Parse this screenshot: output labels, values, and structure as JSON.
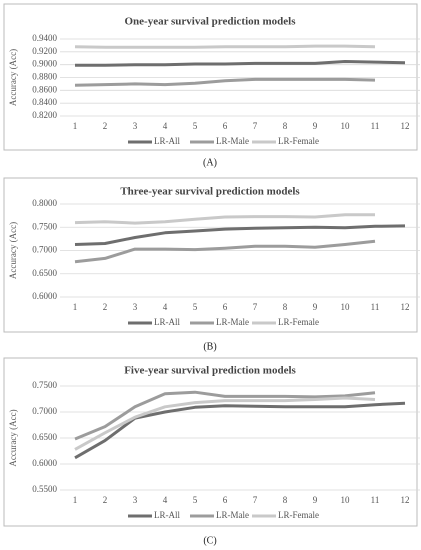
{
  "chart_data": [
    {
      "type": "line",
      "title": "One-year survival prediction models",
      "panel_label": "(A)",
      "y_label": "Accuracy (Acc)",
      "categories": [
        "1",
        "2",
        "3",
        "4",
        "5",
        "6",
        "7",
        "8",
        "9",
        "10",
        "11",
        "12"
      ],
      "series": [
        {
          "name": "LR-All",
          "color": "#6e6e6e",
          "values": [
            0.899,
            0.899,
            0.9,
            0.9,
            0.901,
            0.901,
            0.902,
            0.902,
            0.902,
            0.905,
            0.904,
            0.903
          ]
        },
        {
          "name": "LR-Male",
          "color": "#9c9c9c",
          "values": [
            0.868,
            0.869,
            0.87,
            0.869,
            0.871,
            0.875,
            0.877,
            0.877,
            0.877,
            0.877,
            0.876,
            null
          ]
        },
        {
          "name": "LR-Female",
          "color": "#c9c9c9",
          "values": [
            0.928,
            0.927,
            0.927,
            0.927,
            0.927,
            0.928,
            0.928,
            0.928,
            0.929,
            0.929,
            0.928,
            null
          ]
        }
      ],
      "ylim": [
        0.82,
        0.94
      ],
      "yticks": [
        {
          "value": 0.82,
          "label": "0.8200"
        },
        {
          "value": 0.84,
          "label": "0.8400"
        },
        {
          "value": 0.86,
          "label": "0.8600"
        },
        {
          "value": 0.88,
          "label": "0.8800"
        },
        {
          "value": 0.9,
          "label": "0.9000"
        },
        {
          "value": 0.92,
          "label": "0.9200"
        },
        {
          "value": 0.94,
          "label": "0.9400"
        }
      ],
      "grid": true,
      "legend": "bottom"
    },
    {
      "type": "line",
      "title": "Three-year survival prediction models",
      "panel_label": "(B)",
      "y_label": "Accuracy (Acc)",
      "categories": [
        "1",
        "2",
        "3",
        "4",
        "5",
        "6",
        "7",
        "8",
        "9",
        "10",
        "11",
        "12"
      ],
      "series": [
        {
          "name": "LR-All",
          "color": "#6e6e6e",
          "values": [
            0.713,
            0.715,
            0.728,
            0.738,
            0.742,
            0.746,
            0.748,
            0.749,
            0.75,
            0.749,
            0.752,
            0.753
          ]
        },
        {
          "name": "LR-Male",
          "color": "#9c9c9c",
          "values": [
            0.676,
            0.683,
            0.703,
            0.703,
            0.702,
            0.705,
            0.709,
            0.709,
            0.707,
            0.713,
            0.72,
            null
          ]
        },
        {
          "name": "LR-Female",
          "color": "#c9c9c9",
          "values": [
            0.76,
            0.762,
            0.759,
            0.762,
            0.767,
            0.772,
            0.773,
            0.773,
            0.772,
            0.777,
            0.777,
            null
          ]
        }
      ],
      "ylim": [
        0.6,
        0.8
      ],
      "yticks": [
        {
          "value": 0.6,
          "label": "0.6000"
        },
        {
          "value": 0.65,
          "label": "0.6500"
        },
        {
          "value": 0.7,
          "label": "0.7000"
        },
        {
          "value": 0.75,
          "label": "0.7500"
        },
        {
          "value": 0.8,
          "label": "0.8000"
        }
      ],
      "grid": true,
      "legend": "bottom"
    },
    {
      "type": "line",
      "title": "Five-year survival prediction models",
      "panel_label": "(C)",
      "y_label": "Accuracy (Acc)",
      "categories": [
        "1",
        "2",
        "3",
        "4",
        "5",
        "6",
        "7",
        "8",
        "9",
        "10",
        "11",
        "12"
      ],
      "series": [
        {
          "name": "LR-All",
          "color": "#6e6e6e",
          "values": [
            0.612,
            0.645,
            0.688,
            0.7,
            0.709,
            0.712,
            0.711,
            0.71,
            0.71,
            0.71,
            0.714,
            0.717
          ]
        },
        {
          "name": "LR-Male",
          "color": "#9c9c9c",
          "values": [
            0.648,
            0.672,
            0.71,
            0.735,
            0.738,
            0.73,
            0.73,
            0.73,
            0.729,
            0.731,
            0.737,
            null
          ]
        },
        {
          "name": "LR-Female",
          "color": "#c9c9c9",
          "values": [
            0.628,
            0.66,
            0.69,
            0.71,
            0.718,
            0.722,
            0.722,
            0.722,
            0.724,
            0.727,
            0.724,
            null
          ]
        }
      ],
      "ylim": [
        0.55,
        0.75
      ],
      "yticks": [
        {
          "value": 0.55,
          "label": "0.5500"
        },
        {
          "value": 0.6,
          "label": "0.6000"
        },
        {
          "value": 0.65,
          "label": "0.6500"
        },
        {
          "value": 0.7,
          "label": "0.7000"
        },
        {
          "value": 0.75,
          "label": "0.7500"
        }
      ],
      "grid": true,
      "legend": "bottom"
    }
  ]
}
